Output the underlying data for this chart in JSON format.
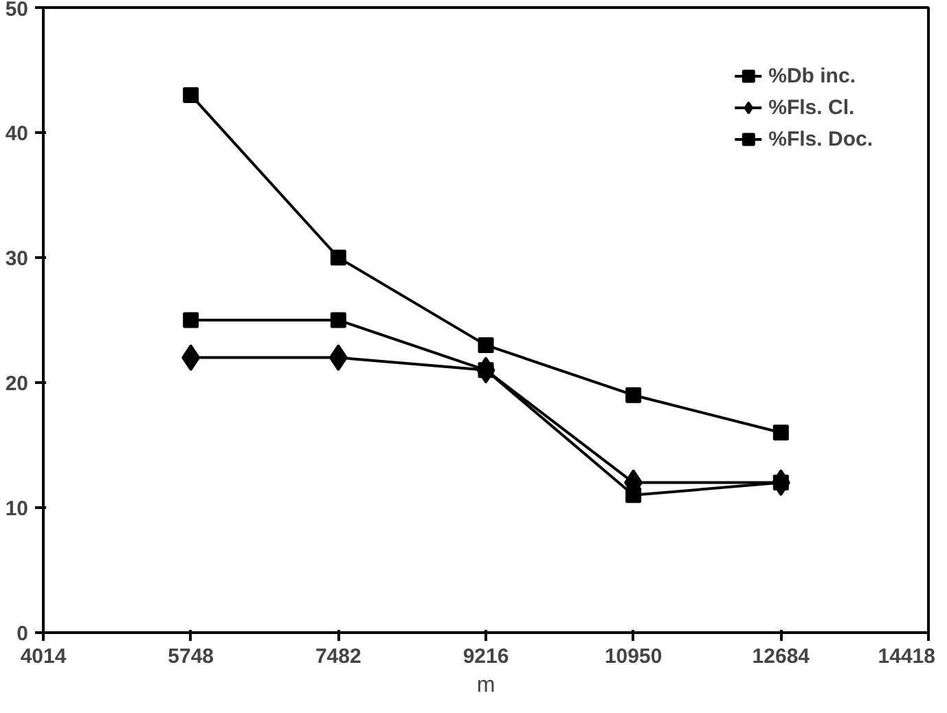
{
  "chart_data": {
    "type": "line",
    "xlabel": "m",
    "x": [
      5748,
      7482,
      9216,
      10950,
      12684
    ],
    "xlim": [
      4014,
      14418
    ],
    "xticks": [
      4014,
      5748,
      7482,
      9216,
      10950,
      12684,
      14418
    ],
    "ylim": [
      0,
      50
    ],
    "yticks": [
      0,
      10,
      20,
      30,
      40,
      50
    ],
    "grid": false,
    "legend": "top right",
    "line_style": "solid",
    "series": [
      {
        "name": "%Db inc.",
        "color": "#000000",
        "marker": "square",
        "values": [
          43,
          30,
          23,
          19,
          16
        ]
      },
      {
        "name": "%Fls. Cl.",
        "color": "#000000",
        "marker": "diamond",
        "values": [
          22,
          22,
          21,
          12,
          12
        ]
      },
      {
        "name": "%Fls. Doc.",
        "color": "#000000",
        "marker": "square",
        "values": [
          25,
          25,
          21,
          11,
          12
        ]
      }
    ]
  }
}
